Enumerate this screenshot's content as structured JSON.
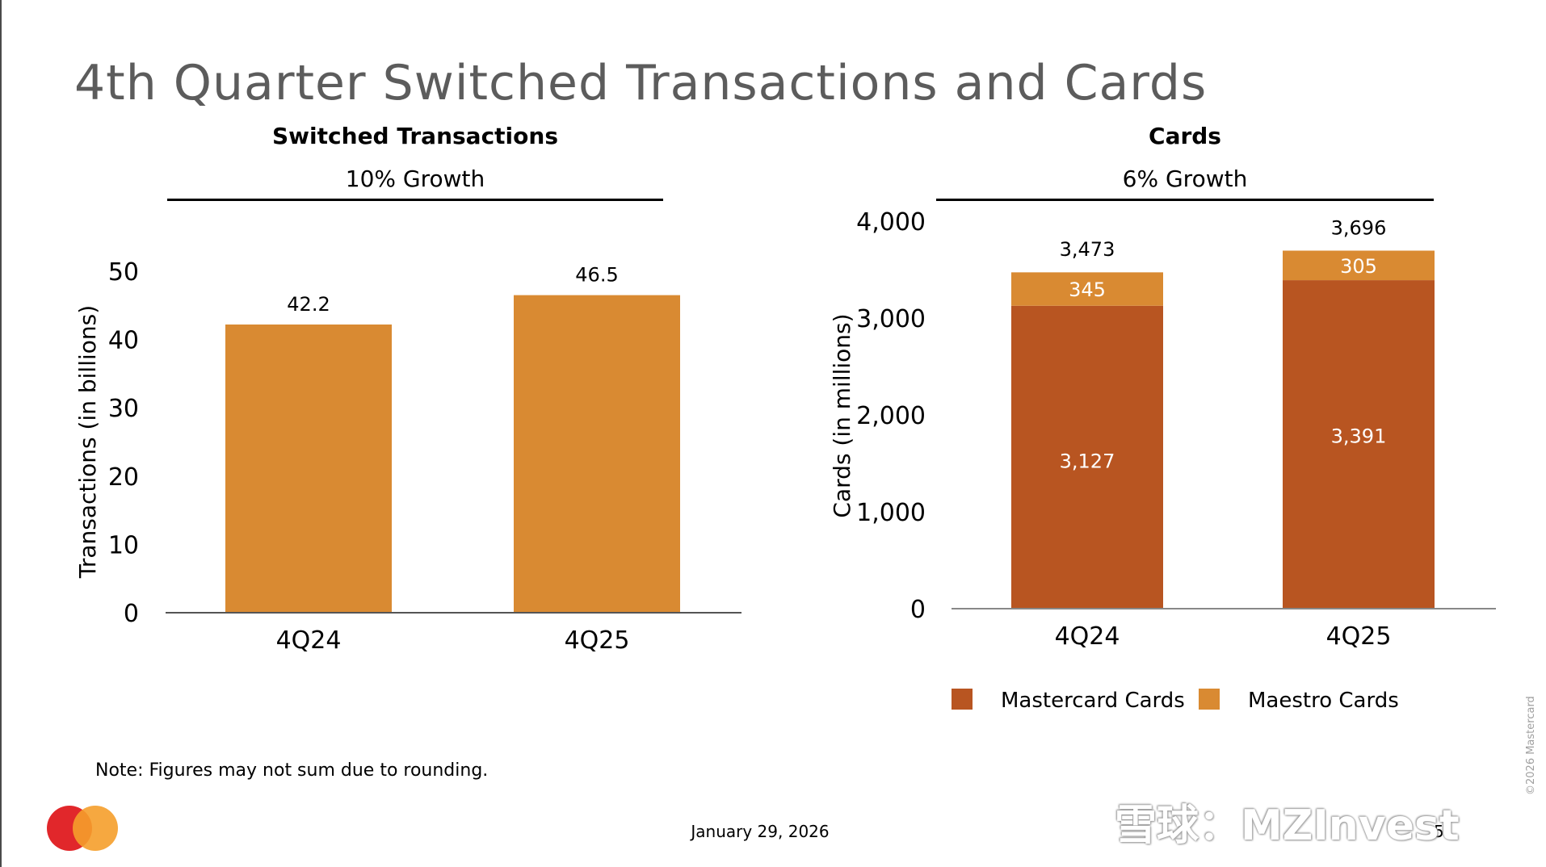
{
  "page": {
    "title": "4th Quarter Switched Transactions and Cards",
    "note": "Note: Figures may not sum due to rounding.",
    "date": "January 29, 2026",
    "page_number": "5",
    "copyright": "©2026 Mastercard",
    "watermark": "雪球：MZInvest"
  },
  "chart_data": [
    {
      "type": "bar",
      "title": "Switched Transactions",
      "subtitle": "10% Growth",
      "ylabel": "Transactions (in billions)",
      "xlabel": "",
      "ylim": [
        0,
        50
      ],
      "yticks": [
        "0",
        "10",
        "20",
        "30",
        "40",
        "50"
      ],
      "categories": [
        "4Q24",
        "4Q25"
      ],
      "values": [
        42.2,
        46.5
      ],
      "value_labels": [
        "42.2",
        "46.5"
      ],
      "color": "#d98a32"
    },
    {
      "type": "bar",
      "stacked": true,
      "title": "Cards",
      "subtitle": "6% Growth",
      "ylabel": "Cards (in millions)",
      "xlabel": "",
      "ylim": [
        0,
        4000
      ],
      "yticks": [
        "0",
        "1,000",
        "2,000",
        "3,000",
        "4,000"
      ],
      "categories": [
        "4Q24",
        "4Q25"
      ],
      "series": [
        {
          "name": "Mastercard Cards",
          "values": [
            3127,
            3391
          ],
          "labels": [
            "3,127",
            "3,391"
          ],
          "color": "#b85521"
        },
        {
          "name": "Maestro Cards",
          "values": [
            345,
            305
          ],
          "labels": [
            "345",
            "305"
          ],
          "color": "#d98a32"
        }
      ],
      "totals": [
        3473,
        3696
      ],
      "total_labels": [
        "3,473",
        "3,696"
      ],
      "legend": "bottom"
    }
  ]
}
